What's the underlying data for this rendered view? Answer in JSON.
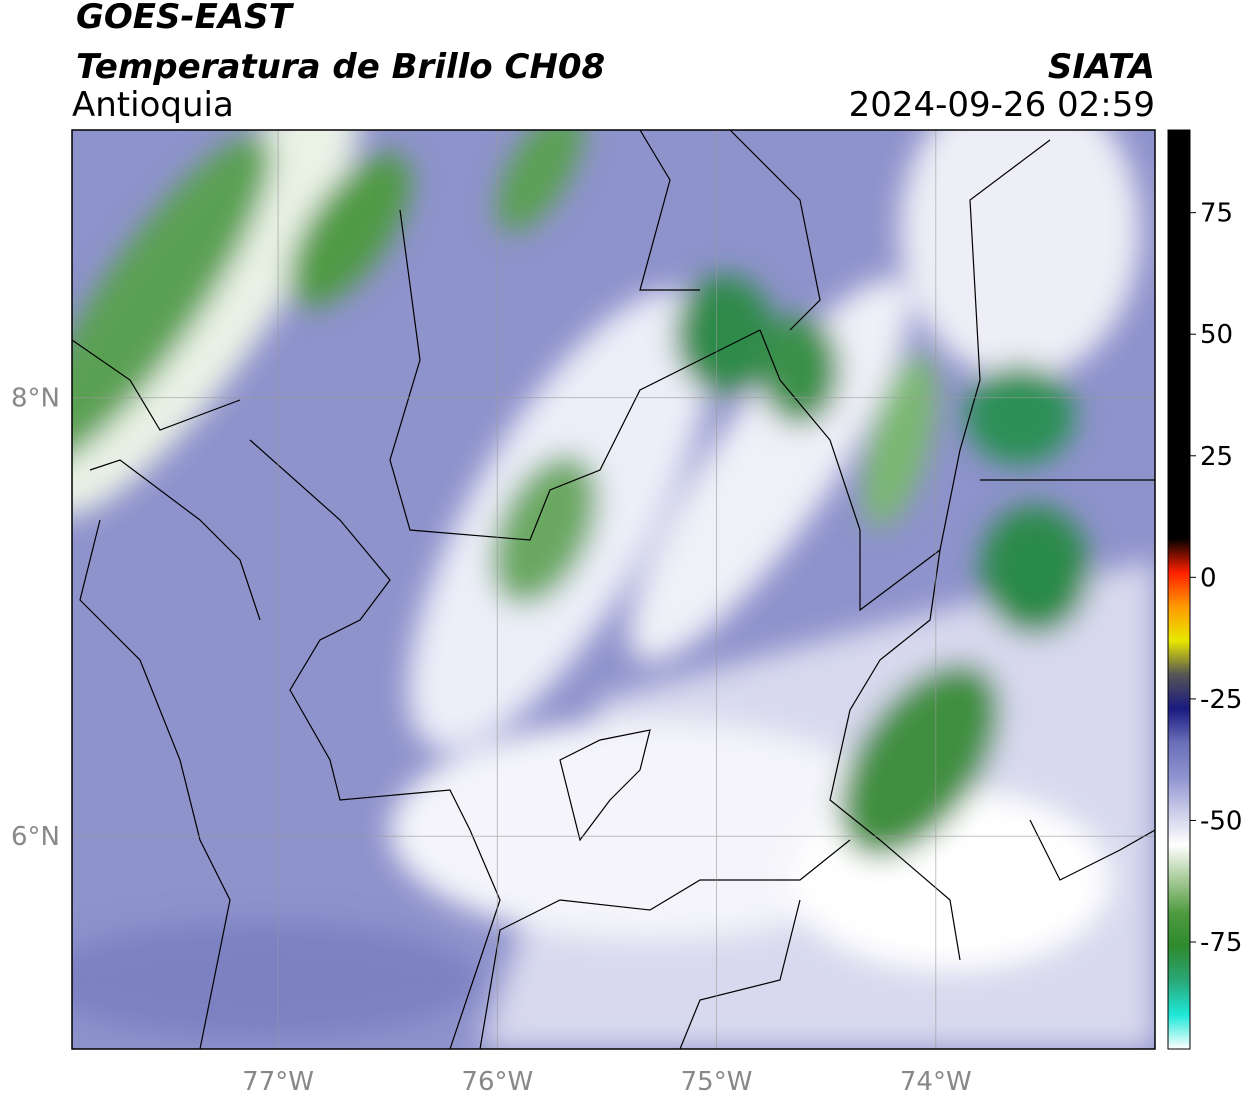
{
  "chart_data": {
    "type": "map",
    "title": "GOES-EAST",
    "subtitle": "Temperatura de Brillo CH08",
    "region": "Antioquia",
    "source": "SIATA",
    "timestamp": "2024-09-26 02:59",
    "xlim": [
      -77.94,
      -73.0
    ],
    "ylim": [
      5.03,
      9.22
    ],
    "xticks": [
      {
        "value": -77,
        "label": "77°W"
      },
      {
        "value": -76,
        "label": "76°W"
      },
      {
        "value": -75,
        "label": "75°W"
      },
      {
        "value": -74,
        "label": "74°W"
      }
    ],
    "yticks": [
      {
        "value": 6,
        "label": "6°N"
      },
      {
        "value": 8,
        "label": "8°N"
      }
    ],
    "grid": true,
    "colorbar": {
      "lim": [
        -97,
        92
      ],
      "ticks": [
        -75,
        -50,
        -25,
        0,
        25,
        50,
        75
      ],
      "colors": [
        "#ffffff",
        "#1ee8d8",
        "#2aa878",
        "#2e8a2e",
        "#4f9a3f",
        "#a9cc9a",
        "#ffffff",
        "#c9cbe8",
        "#8f93cf",
        "#6a6fb8",
        "#1a1a80",
        "#555555",
        "#e8e800",
        "#ff9900",
        "#ff2000",
        "#000000",
        "#000000",
        "#000000",
        "#000000",
        "#000000",
        "#000000",
        "#000000",
        "#000000",
        "#000000",
        "#000000",
        "#000000",
        "#000000",
        "#000000"
      ]
    }
  }
}
